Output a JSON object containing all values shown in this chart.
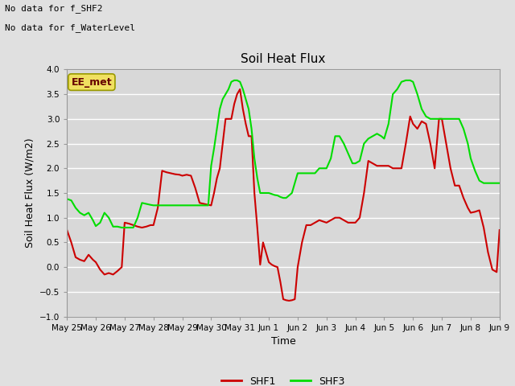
{
  "title": "Soil Heat Flux",
  "ylabel": "Soil Heat Flux (W/m2)",
  "xlabel": "Time",
  "ylim": [
    -1.0,
    4.0
  ],
  "bg_color": "#e0e0e0",
  "plot_bg_color": "#d8d8d8",
  "grid_color": "#ffffff",
  "shf1_color": "#cc0000",
  "shf3_color": "#00dd00",
  "annotation_text1": "No data for f_SHF2",
  "annotation_text2": "No data for f_WaterLevel",
  "box_label": "EE_met",
  "legend_labels": [
    "SHF1",
    "SHF3"
  ],
  "x_tick_labels": [
    "May 25",
    "May 26",
    "May 27",
    "May 28",
    "May 29",
    "May 30",
    "May 31",
    "Jun 1",
    "Jun 2",
    "Jun 3",
    "Jun 4",
    "Jun 5",
    "Jun 6",
    "Jun 7",
    "Jun 8",
    "Jun 9"
  ],
  "yticks": [
    -1.0,
    -0.5,
    0.0,
    0.5,
    1.0,
    1.5,
    2.0,
    2.5,
    3.0,
    3.5,
    4.0
  ],
  "shf1_x": [
    0,
    0.15,
    0.3,
    0.45,
    0.6,
    0.75,
    0.9,
    1.0,
    1.15,
    1.3,
    1.45,
    1.6,
    1.75,
    1.9,
    2.0,
    2.15,
    2.3,
    2.45,
    2.6,
    2.75,
    2.9,
    3.0,
    3.15,
    3.3,
    3.45,
    3.6,
    3.75,
    3.9,
    4.0,
    4.15,
    4.3,
    4.45,
    4.6,
    4.75,
    4.9,
    5.0,
    5.1,
    5.2,
    5.3,
    5.4,
    5.5,
    5.6,
    5.7,
    5.8,
    5.9,
    6.0,
    6.1,
    6.2,
    6.3,
    6.4,
    6.5,
    6.6,
    6.7,
    6.8,
    6.9,
    7.0,
    7.1,
    7.2,
    7.3,
    7.4,
    7.5,
    7.6,
    7.7,
    7.8,
    7.9,
    8.0,
    8.15,
    8.3,
    8.45,
    8.6,
    8.75,
    8.9,
    9.0,
    9.15,
    9.3,
    9.45,
    9.6,
    9.75,
    9.9,
    10.0,
    10.15,
    10.3,
    10.45,
    10.6,
    10.75,
    10.9,
    11.0,
    11.15,
    11.3,
    11.45,
    11.6,
    11.75,
    11.9,
    12.0,
    12.15,
    12.3,
    12.45,
    12.6,
    12.75,
    12.9,
    13.0,
    13.15,
    13.3,
    13.45,
    13.6,
    13.75,
    13.9,
    14.0,
    14.15,
    14.3,
    14.45,
    14.6,
    14.75,
    14.9,
    15.0
  ],
  "shf1_y": [
    0.75,
    0.5,
    0.2,
    0.15,
    0.12,
    0.25,
    0.15,
    0.1,
    -0.05,
    -0.15,
    -0.12,
    -0.15,
    -0.08,
    0.0,
    0.9,
    0.88,
    0.85,
    0.82,
    0.8,
    0.82,
    0.85,
    0.85,
    1.2,
    1.95,
    1.92,
    1.9,
    1.88,
    1.87,
    1.85,
    1.87,
    1.85,
    1.6,
    1.3,
    1.28,
    1.26,
    1.25,
    1.5,
    1.8,
    2.0,
    2.5,
    3.0,
    3.0,
    3.0,
    3.3,
    3.5,
    3.6,
    3.2,
    2.9,
    2.65,
    2.65,
    1.5,
    0.8,
    0.05,
    0.5,
    0.3,
    0.1,
    0.05,
    0.02,
    0.0,
    -0.3,
    -0.65,
    -0.67,
    -0.68,
    -0.67,
    -0.65,
    0.0,
    0.5,
    0.85,
    0.85,
    0.9,
    0.95,
    0.92,
    0.9,
    0.95,
    1.0,
    1.0,
    0.95,
    0.9,
    0.9,
    0.9,
    1.0,
    1.5,
    2.15,
    2.1,
    2.05,
    2.05,
    2.05,
    2.05,
    2.0,
    2.0,
    2.0,
    2.5,
    3.05,
    2.9,
    2.8,
    2.95,
    2.9,
    2.5,
    2.0,
    3.0,
    3.0,
    2.5,
    2.0,
    1.65,
    1.65,
    1.4,
    1.2,
    1.1,
    1.12,
    1.15,
    0.8,
    0.3,
    -0.05,
    -0.1,
    0.75
  ],
  "shf3_x": [
    0,
    0.15,
    0.3,
    0.45,
    0.6,
    0.75,
    0.9,
    1.0,
    1.15,
    1.3,
    1.45,
    1.6,
    1.75,
    1.9,
    2.0,
    2.15,
    2.3,
    2.45,
    2.6,
    2.75,
    2.9,
    3.0,
    3.15,
    3.3,
    3.45,
    3.6,
    3.75,
    3.9,
    4.0,
    4.15,
    4.3,
    4.45,
    4.6,
    4.75,
    4.9,
    5.0,
    5.1,
    5.2,
    5.3,
    5.4,
    5.5,
    5.6,
    5.7,
    5.8,
    5.9,
    6.0,
    6.1,
    6.2,
    6.3,
    6.4,
    6.5,
    6.6,
    6.7,
    6.8,
    6.9,
    7.0,
    7.1,
    7.2,
    7.3,
    7.4,
    7.5,
    7.6,
    7.7,
    7.8,
    7.9,
    8.0,
    8.15,
    8.3,
    8.45,
    8.6,
    8.75,
    8.9,
    9.0,
    9.15,
    9.3,
    9.45,
    9.6,
    9.75,
    9.9,
    10.0,
    10.15,
    10.3,
    10.45,
    10.6,
    10.75,
    10.9,
    11.0,
    11.15,
    11.3,
    11.45,
    11.6,
    11.75,
    11.9,
    12.0,
    12.15,
    12.3,
    12.45,
    12.6,
    12.75,
    12.9,
    13.0,
    13.15,
    13.3,
    13.45,
    13.6,
    13.75,
    13.9,
    14.0,
    14.15,
    14.3,
    14.45,
    14.6,
    14.75,
    14.9,
    15.0
  ],
  "shf3_y": [
    1.38,
    1.35,
    1.2,
    1.1,
    1.05,
    1.1,
    0.95,
    0.83,
    0.9,
    1.1,
    1.0,
    0.82,
    0.82,
    0.8,
    0.8,
    0.8,
    0.8,
    1.0,
    1.3,
    1.28,
    1.26,
    1.25,
    1.25,
    1.25,
    1.25,
    1.25,
    1.25,
    1.25,
    1.25,
    1.25,
    1.25,
    1.25,
    1.25,
    1.25,
    1.25,
    2.05,
    2.4,
    2.8,
    3.2,
    3.4,
    3.5,
    3.6,
    3.75,
    3.78,
    3.78,
    3.75,
    3.6,
    3.4,
    3.2,
    2.8,
    2.2,
    1.8,
    1.5,
    1.5,
    1.5,
    1.5,
    1.48,
    1.46,
    1.45,
    1.42,
    1.4,
    1.4,
    1.45,
    1.5,
    1.7,
    1.9,
    1.9,
    1.9,
    1.9,
    1.9,
    2.0,
    2.0,
    2.0,
    2.2,
    2.65,
    2.65,
    2.5,
    2.3,
    2.1,
    2.1,
    2.15,
    2.5,
    2.6,
    2.65,
    2.7,
    2.65,
    2.6,
    2.9,
    3.5,
    3.6,
    3.75,
    3.78,
    3.78,
    3.75,
    3.5,
    3.2,
    3.05,
    3.0,
    3.0,
    3.0,
    3.0,
    3.0,
    3.0,
    3.0,
    3.0,
    2.8,
    2.5,
    2.2,
    1.95,
    1.75,
    1.7,
    1.7,
    1.7,
    1.7,
    1.7
  ]
}
